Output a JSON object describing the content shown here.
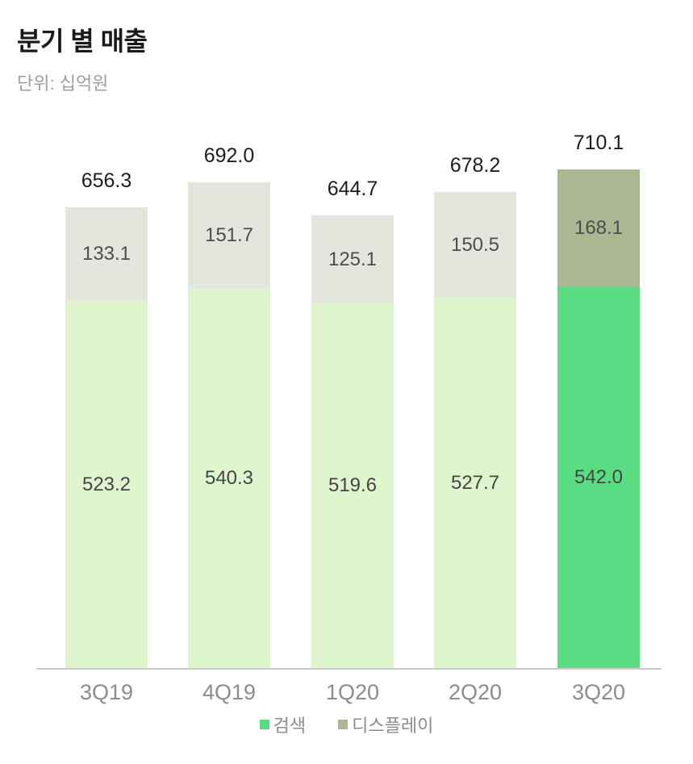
{
  "page": {
    "title": "분기 별 매출",
    "subtitle": "단위: 십억원"
  },
  "chart_data": {
    "type": "bar",
    "stacked": true,
    "title": "분기 별 매출",
    "unit_label": "단위: 십억원",
    "categories": [
      "3Q19",
      "4Q19",
      "1Q20",
      "2Q20",
      "3Q20"
    ],
    "series": [
      {
        "name": "검색",
        "values": [
          523.2,
          540.3,
          519.6,
          527.7,
          542.0
        ],
        "color": "#dff5cd",
        "highlight_color": "#5adc82"
      },
      {
        "name": "디스플레이",
        "values": [
          133.1,
          151.7,
          125.1,
          150.5,
          168.1
        ],
        "color": "#e4e6de",
        "highlight_color": "#abb693"
      }
    ],
    "totals": [
      656.3,
      692.0,
      644.7,
      678.2,
      710.1
    ],
    "highlighted_category": "3Q20",
    "ylim": [
      0,
      710.1
    ],
    "grid": false,
    "legend_position": "bottom"
  },
  "legend": {
    "items": [
      {
        "label": "검색",
        "color": "#5adc82"
      },
      {
        "label": "디스플레이",
        "color": "#abb693"
      }
    ]
  }
}
